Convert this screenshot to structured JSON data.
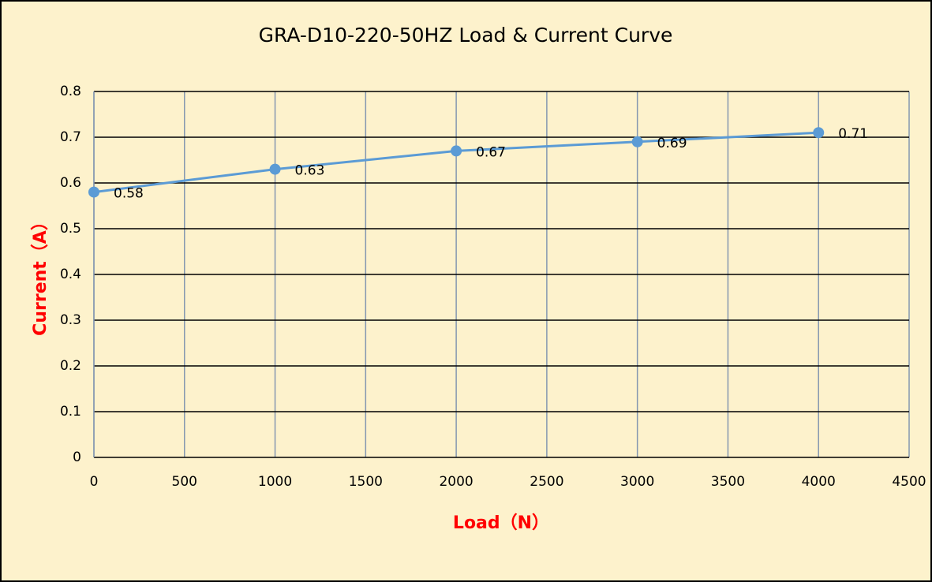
{
  "chart_data": {
    "type": "line",
    "title": "GRA-D10-220-50HZ Load & Current Curve",
    "x_label": "Load（N）",
    "y_label": "Current（A）",
    "x": [
      0,
      1000,
      2000,
      3000,
      4000
    ],
    "series": [
      {
        "name": "Current",
        "color": "#5b9bd5",
        "values": [
          0.58,
          0.63,
          0.67,
          0.69,
          0.71
        ]
      }
    ],
    "xlim": [
      0,
      4500
    ],
    "xticks": [
      0,
      500,
      1000,
      1500,
      2000,
      2500,
      3000,
      3500,
      4000,
      4500
    ],
    "ylim": [
      0,
      0.8
    ],
    "yticks": [
      0,
      0.1,
      0.2,
      0.3,
      0.4,
      0.5,
      0.6,
      0.7,
      0.8
    ],
    "grid": true
  }
}
